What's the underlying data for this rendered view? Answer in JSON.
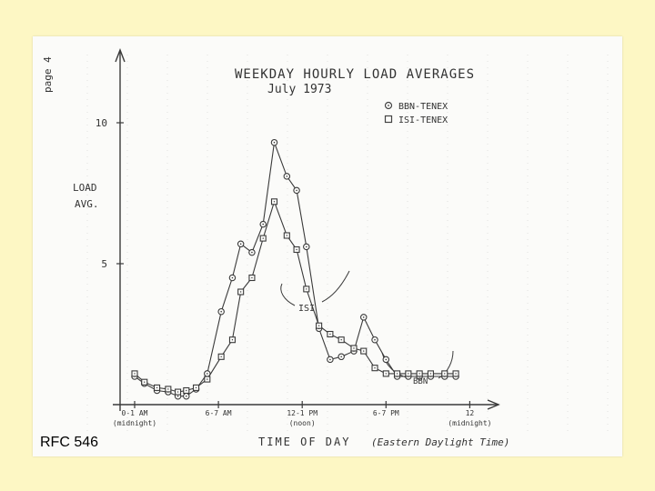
{
  "slide_label": "RFC 546",
  "page_note": "page 4",
  "chart_data": {
    "type": "line",
    "title": "WEEKDAY HOURLY LOAD AVERAGES",
    "subtitle": "July 1973",
    "ylabel_line1": "LOAD",
    "ylabel_line2": "AVG.",
    "xlabel": "TIME OF DAY",
    "xlabel_note": "(Eastern Daylight Time)",
    "ylim": [
      0,
      10
    ],
    "y_ticks": [
      "5",
      "10"
    ],
    "x_ticks": [
      {
        "hour": 0,
        "label": "0-1 AM",
        "sub": "(midnight)"
      },
      {
        "hour": 6,
        "label": "6-7 AM",
        "sub": ""
      },
      {
        "hour": 12,
        "label": "12-1 PM",
        "sub": "(noon)"
      },
      {
        "hour": 18,
        "label": "6-7 PM",
        "sub": ""
      },
      {
        "hour": 24,
        "label": "12",
        "sub": "(midnight)"
      }
    ],
    "hours": [
      0,
      0.7,
      1.6,
      2.4,
      3.1,
      3.7,
      4.4,
      5.2,
      6.2,
      7.0,
      7.6,
      8.4,
      9.2,
      10.0,
      10.9,
      11.6,
      12.3,
      13.2,
      14.0,
      14.8,
      15.7,
      16.4,
      17.2,
      18.0,
      18.8,
      19.6,
      20.4,
      21.2,
      22.2,
      23.0
    ],
    "series": [
      {
        "name": "BBN-TENEX",
        "marker": "circle",
        "values": [
          1.0,
          0.75,
          0.5,
          0.45,
          0.3,
          0.3,
          0.55,
          1.1,
          3.3,
          4.5,
          5.7,
          5.4,
          6.4,
          9.3,
          8.1,
          7.6,
          5.6,
          2.7,
          1.6,
          1.7,
          1.9,
          3.1,
          2.3,
          1.6,
          1.0,
          1.0,
          1.0,
          1.0,
          1.0,
          1.0
        ]
      },
      {
        "name": "ISI-TENEX",
        "marker": "square",
        "values": [
          1.1,
          0.8,
          0.6,
          0.55,
          0.45,
          0.5,
          0.6,
          0.9,
          1.7,
          2.3,
          4.0,
          4.5,
          5.9,
          7.2,
          6.0,
          5.5,
          4.1,
          2.8,
          2.5,
          2.3,
          2.0,
          1.9,
          1.3,
          1.1,
          1.1,
          1.1,
          1.1,
          1.1,
          1.1,
          1.1
        ]
      }
    ],
    "annotations": [
      "ISI",
      "BBN"
    ],
    "grid": false,
    "legend_position": "top-right"
  }
}
